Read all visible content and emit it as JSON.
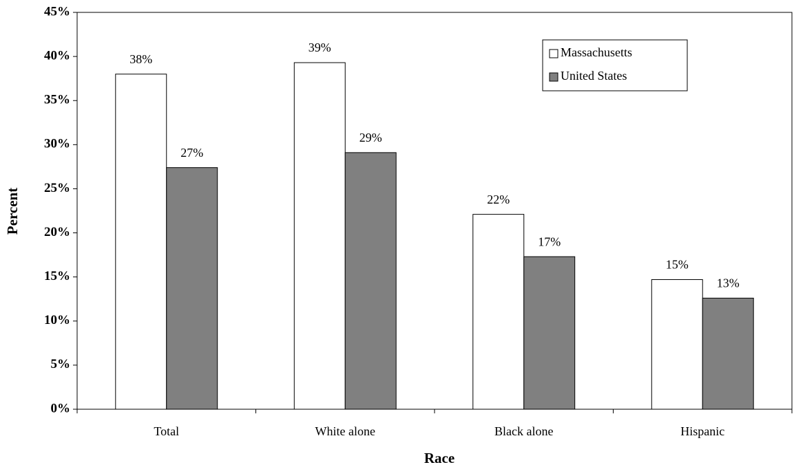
{
  "chart_data": {
    "type": "bar",
    "x_label": "Race",
    "y_label": "Percent",
    "categories": [
      "Total",
      "White alone",
      "Black alone",
      "Hispanic"
    ],
    "series": [
      {
        "name": "Massachusetts",
        "color": "#ffffff",
        "values": [
          38.0,
          39.3,
          22.1,
          14.7
        ],
        "value_labels": [
          "38%",
          "39%",
          "22%",
          "15%"
        ]
      },
      {
        "name": "United States",
        "color": "#808080",
        "values": [
          27.4,
          29.1,
          17.3,
          12.6
        ],
        "value_labels": [
          "27%",
          "29%",
          "17%",
          "13%"
        ]
      }
    ],
    "ylim": [
      0,
      45
    ],
    "yticks": [
      {
        "value": 0,
        "label": "0%"
      },
      {
        "value": 5,
        "label": "5%"
      },
      {
        "value": 10,
        "label": "10%"
      },
      {
        "value": 15,
        "label": "15%"
      },
      {
        "value": 20,
        "label": "20%"
      },
      {
        "value": 25,
        "label": "25%"
      },
      {
        "value": 30,
        "label": "30%"
      },
      {
        "value": 35,
        "label": "35%"
      },
      {
        "value": 40,
        "label": "40%"
      },
      {
        "value": 45,
        "label": "45%"
      }
    ],
    "legend": "upper right",
    "grid": false
  }
}
